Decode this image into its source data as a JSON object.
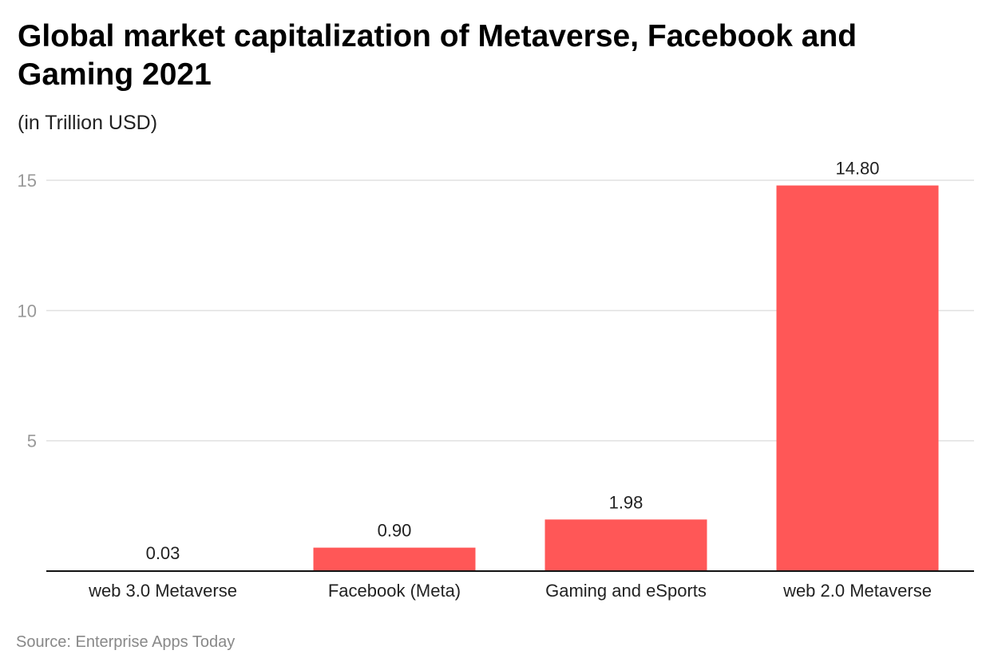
{
  "chart_data": {
    "type": "bar",
    "title": "Global market capitalization of Metaverse, Facebook and Gaming 2021",
    "subtitle": "(in Trillion USD)",
    "categories": [
      "web 3.0 Metaverse",
      "Facebook (Meta)",
      "Gaming and eSports",
      "web 2.0 Metaverse"
    ],
    "values": [
      0.03,
      0.9,
      1.98,
      14.8
    ],
    "data_labels": [
      "0.03",
      "0.90",
      "1.98",
      "14.80"
    ],
    "xlabel": "",
    "ylabel": "",
    "ylim": [
      0,
      15
    ],
    "yticks": [
      5,
      10,
      15
    ],
    "grid": true,
    "bar_color": "#ff5757",
    "source": "Source: Enterprise Apps Today"
  }
}
